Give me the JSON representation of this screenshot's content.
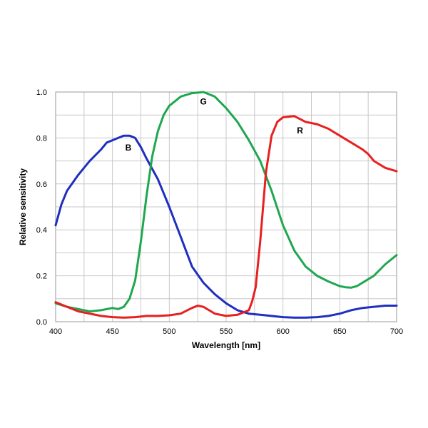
{
  "chart_data": {
    "type": "line",
    "title": "",
    "xlabel": "Wavelength [nm]",
    "ylabel": "Relative sensitivity",
    "xlim": [
      400,
      700
    ],
    "ylim": [
      0,
      1.0
    ],
    "x_ticks": [
      400,
      450,
      500,
      550,
      600,
      650,
      700
    ],
    "y_ticks": [
      0.0,
      0.2,
      0.4,
      0.6,
      0.8,
      1.0
    ],
    "x_tick_labels": [
      "400",
      "450",
      "500",
      "550",
      "600",
      "650",
      "700"
    ],
    "y_tick_labels": [
      "0.0",
      "0.2",
      "0.4",
      "0.6",
      "0.8",
      "1.0"
    ],
    "grid": true,
    "series": [
      {
        "name": "B",
        "color": "#1f2fbf",
        "x": [
          400,
          405,
          410,
          420,
          430,
          440,
          445,
          450,
          455,
          460,
          465,
          470,
          475,
          480,
          490,
          500,
          510,
          520,
          530,
          540,
          550,
          560,
          570,
          580,
          590,
          600,
          610,
          620,
          630,
          640,
          650,
          660,
          670,
          680,
          690,
          700
        ],
        "y": [
          0.42,
          0.51,
          0.57,
          0.64,
          0.7,
          0.75,
          0.78,
          0.79,
          0.8,
          0.81,
          0.81,
          0.8,
          0.76,
          0.71,
          0.62,
          0.5,
          0.37,
          0.24,
          0.17,
          0.12,
          0.08,
          0.05,
          0.035,
          0.03,
          0.025,
          0.02,
          0.018,
          0.018,
          0.02,
          0.025,
          0.035,
          0.05,
          0.06,
          0.065,
          0.07,
          0.07
        ]
      },
      {
        "name": "G",
        "color": "#1fa750",
        "x": [
          400,
          410,
          420,
          430,
          440,
          450,
          455,
          460,
          465,
          470,
          475,
          480,
          485,
          490,
          495,
          500,
          505,
          510,
          520,
          530,
          540,
          550,
          560,
          570,
          580,
          590,
          600,
          610,
          620,
          630,
          640,
          650,
          655,
          660,
          665,
          670,
          680,
          690,
          700
        ],
        "y": [
          0.08,
          0.065,
          0.055,
          0.045,
          0.05,
          0.06,
          0.055,
          0.065,
          0.1,
          0.18,
          0.35,
          0.55,
          0.72,
          0.83,
          0.9,
          0.94,
          0.96,
          0.98,
          0.995,
          1.0,
          0.98,
          0.93,
          0.87,
          0.79,
          0.7,
          0.57,
          0.42,
          0.31,
          0.24,
          0.2,
          0.175,
          0.155,
          0.15,
          0.148,
          0.155,
          0.17,
          0.2,
          0.25,
          0.29
        ]
      },
      {
        "name": "R",
        "color": "#e81f1f",
        "x": [
          400,
          410,
          420,
          430,
          440,
          450,
          460,
          470,
          480,
          490,
          500,
          510,
          520,
          525,
          530,
          535,
          540,
          550,
          560,
          565,
          570,
          573,
          576,
          580,
          585,
          590,
          595,
          600,
          610,
          620,
          630,
          640,
          650,
          660,
          670,
          675,
          680,
          690,
          700
        ],
        "y": [
          0.085,
          0.065,
          0.045,
          0.035,
          0.025,
          0.02,
          0.018,
          0.02,
          0.025,
          0.025,
          0.028,
          0.035,
          0.06,
          0.07,
          0.065,
          0.05,
          0.035,
          0.025,
          0.03,
          0.04,
          0.05,
          0.09,
          0.15,
          0.35,
          0.65,
          0.81,
          0.87,
          0.89,
          0.895,
          0.87,
          0.86,
          0.84,
          0.81,
          0.78,
          0.75,
          0.73,
          0.7,
          0.67,
          0.655
        ]
      }
    ],
    "series_labels": [
      {
        "text": "B",
        "x": 464,
        "y": 0.745
      },
      {
        "text": "G",
        "x": 530,
        "y": 0.945
      },
      {
        "text": "R",
        "x": 615,
        "y": 0.82
      }
    ]
  }
}
